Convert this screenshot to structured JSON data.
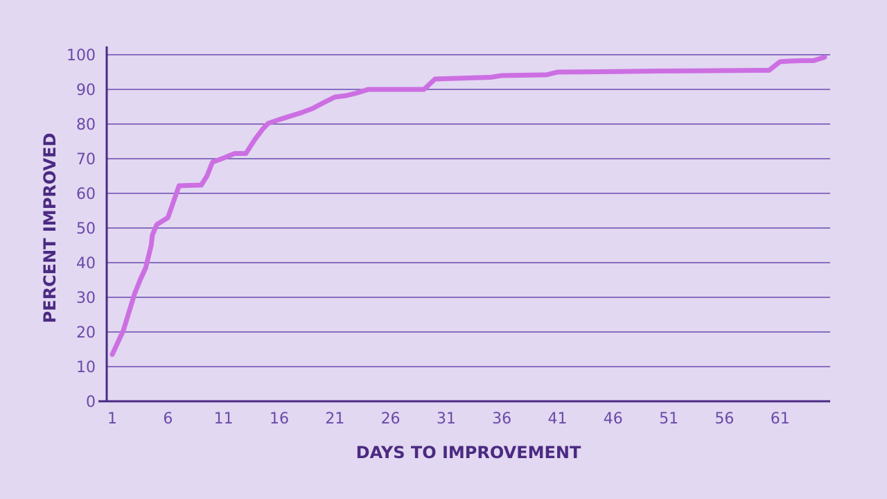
{
  "chart_data": {
    "type": "line",
    "title": "",
    "xlabel": "DAYS TO IMPROVEMENT",
    "ylabel": "PERCENT IMPROVED",
    "xlim": [
      0.5,
      65.5
    ],
    "ylim": [
      0,
      100
    ],
    "x_ticks": [
      1,
      6,
      11,
      16,
      21,
      26,
      31,
      36,
      41,
      46,
      51,
      56,
      61
    ],
    "y_ticks": [
      0,
      10,
      20,
      30,
      40,
      50,
      60,
      70,
      80,
      90,
      100
    ],
    "grid": true,
    "legend": "none",
    "colors": {
      "line": "#cc6fe2",
      "axis": "#4b2a82",
      "grid": "#6b4bb0",
      "background": "#e2d8f1"
    },
    "series": [
      {
        "x": [
          1,
          2,
          3,
          3.5,
          4,
          4.5,
          4.6,
          5,
          6,
          7,
          8,
          9,
          9.5,
          10,
          11,
          12,
          13,
          13.8,
          14.5,
          15,
          16,
          17,
          18,
          19,
          20,
          21,
          22,
          23,
          24,
          25,
          26,
          27,
          28,
          29,
          30,
          35,
          36,
          40,
          41,
          45,
          50,
          55,
          59,
          60,
          61,
          62,
          63,
          64,
          65
        ],
        "y": [
          13.5,
          20.5,
          31,
          35,
          38.5,
          45,
          48,
          51,
          53,
          62.2,
          62.3,
          62.4,
          65,
          69,
          70.2,
          71.5,
          71.5,
          75.5,
          78.5,
          80.2,
          81.3,
          82.3,
          83.3,
          84.5,
          86.2,
          87.8,
          88.2,
          89,
          90,
          90,
          90,
          90,
          90,
          90,
          93,
          93.5,
          94,
          94.2,
          95,
          95.1,
          95.3,
          95.4,
          95.5,
          95.5,
          98,
          98.2,
          98.3,
          98.3,
          99.3
        ]
      }
    ]
  }
}
